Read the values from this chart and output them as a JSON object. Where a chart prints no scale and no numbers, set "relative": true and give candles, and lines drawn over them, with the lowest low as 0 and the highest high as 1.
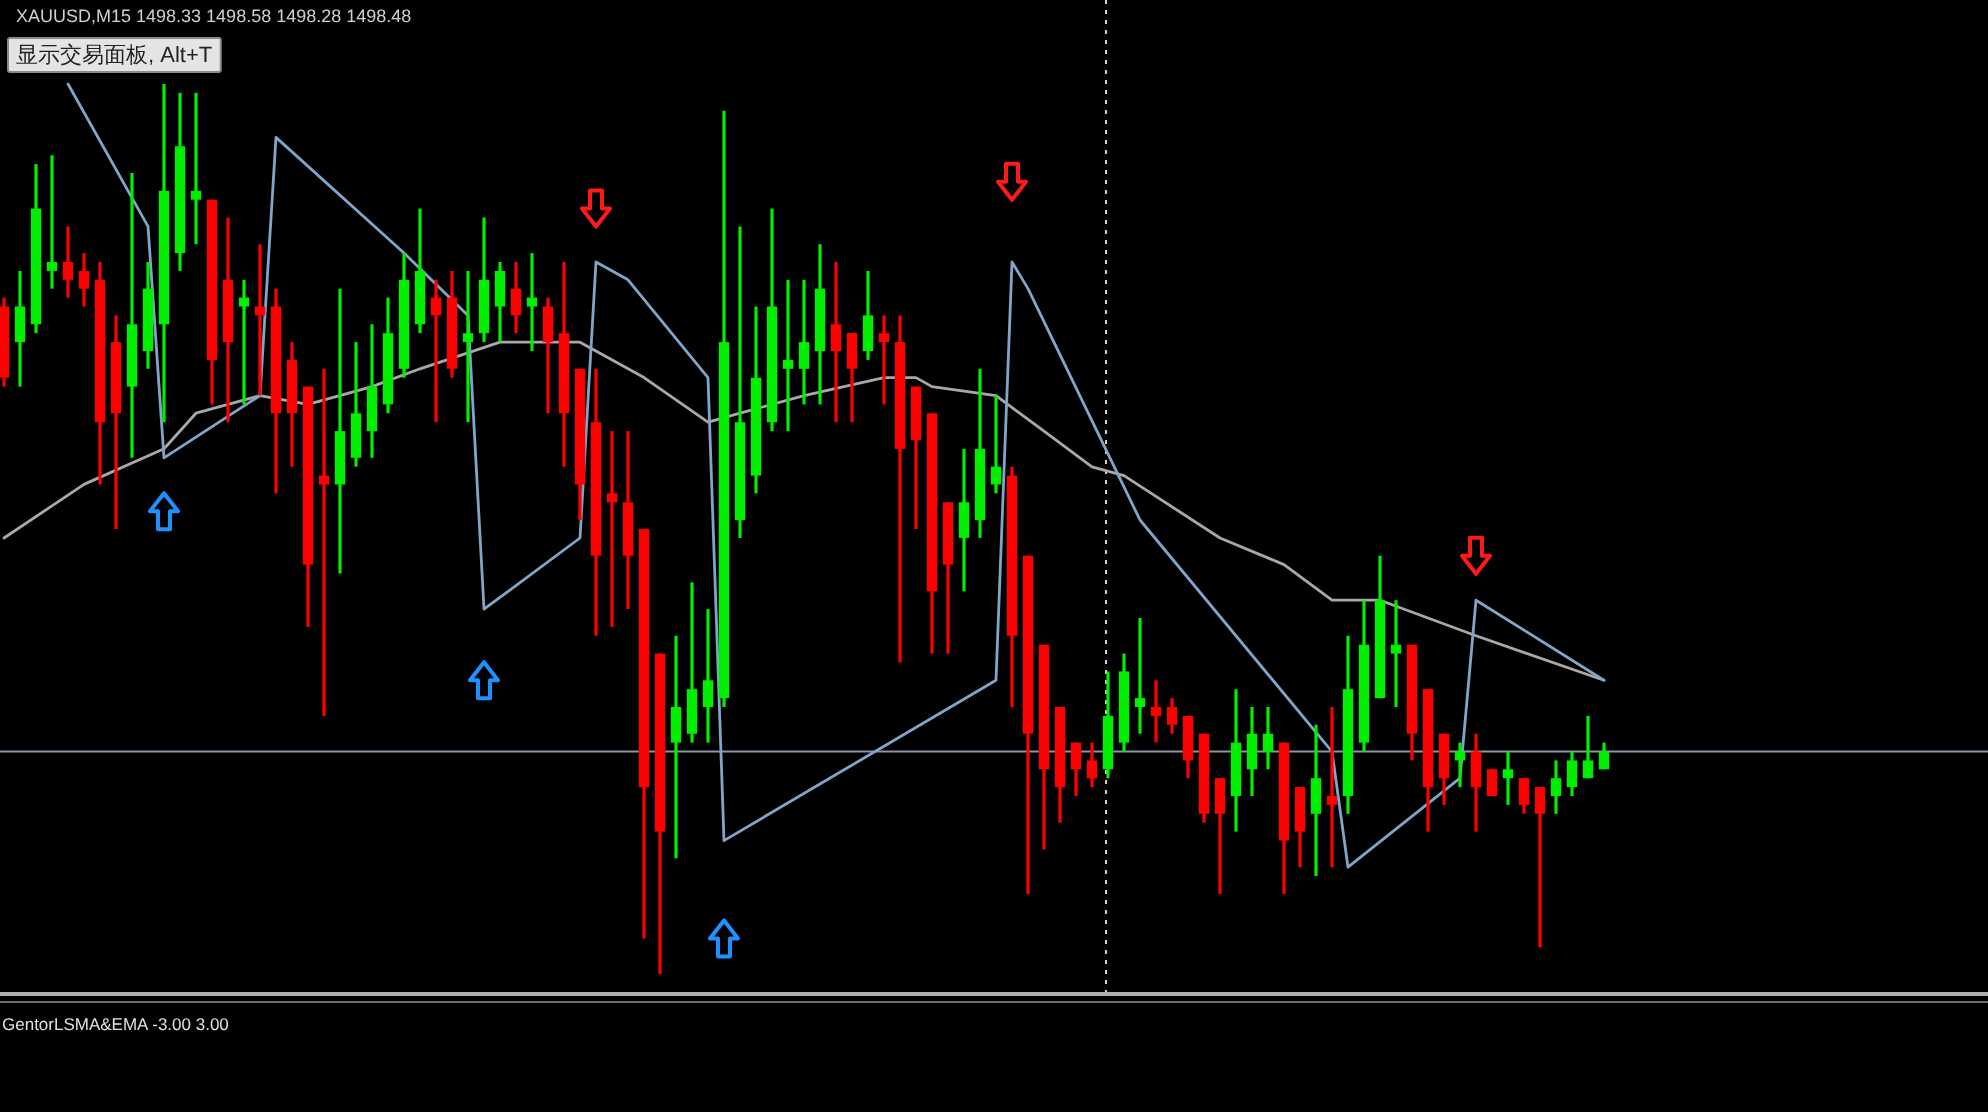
{
  "chart_data": [
    {
      "type": "candlestick",
      "title": "XAUUSD,M15  1498.33 1498.58 1498.28 1498.48",
      "annotations": [
        "显示交易面板, Alt+T"
      ],
      "relative": true,
      "categories": [
        null,
        null,
        null,
        null,
        null,
        null,
        null,
        null,
        null,
        null,
        null,
        null,
        null,
        null,
        null,
        null,
        null,
        null,
        null,
        null,
        null,
        null,
        null,
        null,
        null,
        null,
        null,
        null,
        null,
        null,
        null,
        null,
        null,
        null,
        null,
        null,
        null,
        null,
        null,
        null,
        null,
        null,
        null,
        null,
        null,
        null,
        null,
        null,
        null,
        null,
        null,
        null,
        null,
        null,
        null,
        null,
        null,
        null,
        null,
        null,
        null,
        null,
        null,
        null,
        null,
        null,
        null,
        null,
        null,
        null,
        null,
        null,
        null,
        null,
        null,
        null,
        null,
        null,
        null,
        null,
        null,
        null,
        null,
        null,
        null,
        null,
        null,
        null,
        null,
        null,
        null,
        null,
        null,
        null,
        null,
        null,
        null,
        null,
        null,
        null,
        null
      ],
      "ohlc": [
        [
          0.75,
          0.76,
          0.66,
          0.67
        ],
        [
          0.71,
          0.79,
          0.66,
          0.75
        ],
        [
          0.73,
          0.91,
          0.72,
          0.86
        ],
        [
          0.79,
          0.92,
          0.77,
          0.8
        ],
        [
          0.8,
          0.84,
          0.76,
          0.78
        ],
        [
          0.79,
          0.81,
          0.75,
          0.77
        ],
        [
          0.78,
          0.8,
          0.55,
          0.62
        ],
        [
          0.71,
          0.74,
          0.5,
          0.63
        ],
        [
          0.66,
          0.9,
          0.58,
          0.73
        ],
        [
          0.7,
          0.8,
          0.68,
          0.77
        ],
        [
          0.73,
          1.0,
          0.62,
          0.88
        ],
        [
          0.81,
          0.99,
          0.79,
          0.93
        ],
        [
          0.87,
          0.99,
          0.82,
          0.88
        ],
        [
          0.87,
          0.87,
          0.64,
          0.69
        ],
        [
          0.78,
          0.85,
          0.62,
          0.71
        ],
        [
          0.75,
          0.78,
          0.64,
          0.76
        ],
        [
          0.75,
          0.82,
          0.65,
          0.74
        ],
        [
          0.75,
          0.77,
          0.54,
          0.63
        ],
        [
          0.69,
          0.71,
          0.57,
          0.63
        ],
        [
          0.66,
          0.66,
          0.39,
          0.46
        ],
        [
          0.56,
          0.68,
          0.29,
          0.55
        ],
        [
          0.55,
          0.77,
          0.45,
          0.61
        ],
        [
          0.58,
          0.71,
          0.57,
          0.63
        ],
        [
          0.61,
          0.73,
          0.58,
          0.66
        ],
        [
          0.64,
          0.76,
          0.63,
          0.72
        ],
        [
          0.68,
          0.81,
          0.67,
          0.78
        ],
        [
          0.73,
          0.86,
          0.72,
          0.79
        ],
        [
          0.76,
          0.78,
          0.62,
          0.74
        ],
        [
          0.76,
          0.79,
          0.67,
          0.68
        ],
        [
          0.71,
          0.79,
          0.62,
          0.72
        ],
        [
          0.72,
          0.85,
          0.71,
          0.78
        ],
        [
          0.75,
          0.8,
          0.71,
          0.79
        ],
        [
          0.77,
          0.8,
          0.72,
          0.74
        ],
        [
          0.75,
          0.81,
          0.7,
          0.76
        ],
        [
          0.75,
          0.76,
          0.63,
          0.71
        ],
        [
          0.72,
          0.8,
          0.57,
          0.63
        ],
        [
          0.68,
          0.68,
          0.51,
          0.55
        ],
        [
          0.62,
          0.68,
          0.38,
          0.47
        ],
        [
          0.54,
          0.61,
          0.39,
          0.53
        ],
        [
          0.53,
          0.61,
          0.41,
          0.47
        ],
        [
          0.5,
          0.5,
          0.04,
          0.21
        ],
        [
          0.36,
          0.36,
          0,
          0.16
        ],
        [
          0.26,
          0.38,
          0.13,
          0.3
        ],
        [
          0.27,
          0.44,
          0.26,
          0.32
        ],
        [
          0.3,
          0.41,
          0.26,
          0.33
        ],
        [
          0.31,
          0.97,
          0.3,
          0.71
        ],
        [
          0.51,
          0.84,
          0.49,
          0.62
        ],
        [
          0.56,
          0.75,
          0.54,
          0.67
        ],
        [
          0.62,
          0.86,
          0.61,
          0.75
        ],
        [
          0.68,
          0.78,
          0.61,
          0.69
        ],
        [
          0.68,
          0.78,
          0.64,
          0.71
        ],
        [
          0.7,
          0.82,
          0.64,
          0.77
        ],
        [
          0.73,
          0.8,
          0.62,
          0.7
        ],
        [
          0.72,
          0.72,
          0.62,
          0.68
        ],
        [
          0.7,
          0.79,
          0.69,
          0.74
        ],
        [
          0.72,
          0.74,
          0.64,
          0.71
        ],
        [
          0.71,
          0.74,
          0.35,
          0.59
        ],
        [
          0.66,
          0.66,
          0.5,
          0.6
        ],
        [
          0.63,
          0.63,
          0.36,
          0.43
        ],
        [
          0.53,
          0.53,
          0.36,
          0.46
        ],
        [
          0.49,
          0.59,
          0.43,
          0.53
        ],
        [
          0.51,
          0.68,
          0.49,
          0.59
        ],
        [
          0.55,
          0.65,
          0.54,
          0.57
        ],
        [
          0.56,
          0.57,
          0.3,
          0.38
        ],
        [
          0.47,
          0.47,
          0.09,
          0.27
        ],
        [
          0.37,
          0.37,
          0.14,
          0.23
        ],
        [
          0.3,
          0.3,
          0.17,
          0.21
        ],
        [
          0.26,
          0.26,
          0.2,
          0.23
        ],
        [
          0.24,
          0.26,
          0.21,
          0.22
        ],
        [
          0.23,
          0.34,
          0.22,
          0.29
        ],
        [
          0.26,
          0.36,
          0.25,
          0.34
        ],
        [
          0.3,
          0.4,
          0.27,
          0.31
        ],
        [
          0.3,
          0.33,
          0.26,
          0.29
        ],
        [
          0.3,
          0.31,
          0.27,
          0.28
        ],
        [
          0.29,
          0.29,
          0.22,
          0.24
        ],
        [
          0.27,
          0.27,
          0.17,
          0.18
        ],
        [
          0.22,
          0.22,
          0.09,
          0.18
        ],
        [
          0.2,
          0.32,
          0.16,
          0.26
        ],
        [
          0.23,
          0.3,
          0.2,
          0.27
        ],
        [
          0.25,
          0.3,
          0.23,
          0.27
        ],
        [
          0.26,
          0.26,
          0.09,
          0.15
        ],
        [
          0.21,
          0.21,
          0.12,
          0.16
        ],
        [
          0.18,
          0.28,
          0.11,
          0.22
        ],
        [
          0.2,
          0.3,
          0.12,
          0.19
        ],
        [
          0.2,
          0.38,
          0.18,
          0.32
        ],
        [
          0.26,
          0.42,
          0.25,
          0.37
        ],
        [
          0.31,
          0.47,
          0.31,
          0.42
        ],
        [
          0.36,
          0.42,
          0.3,
          0.37
        ],
        [
          0.37,
          0.37,
          0.24,
          0.27
        ],
        [
          0.32,
          0.32,
          0.16,
          0.21
        ],
        [
          0.27,
          0.27,
          0.19,
          0.22
        ],
        [
          0.24,
          0.26,
          0.21,
          0.25
        ],
        [
          0.25,
          0.27,
          0.16,
          0.21
        ],
        [
          0.23,
          0.23,
          0.2,
          0.2
        ],
        [
          0.22,
          0.25,
          0.19,
          0.23
        ],
        [
          0.22,
          0.22,
          0.18,
          0.19
        ],
        [
          0.21,
          0.21,
          0.03,
          0.18
        ],
        [
          0.2,
          0.24,
          0.18,
          0.22
        ],
        [
          0.21,
          0.25,
          0.2,
          0.24
        ],
        [
          0.22,
          0.29,
          0.22,
          0.24
        ],
        [
          0.23,
          0.26,
          0.23,
          0.25
        ]
      ],
      "colors": [
        "#ff0000",
        "#00ee00",
        "#00ee00",
        "#00ee00",
        "#ff0000",
        "#ff0000",
        "#ff0000",
        "#ff0000",
        "#00ee00",
        "#00ee00",
        "#00ee00",
        "#00ee00",
        "#00ee00",
        "#ff0000",
        "#ff0000",
        "#00ee00",
        "#ff0000",
        "#ff0000",
        "#ff0000",
        "#ff0000",
        "#ff0000",
        "#00ee00",
        "#00ee00",
        "#00ee00",
        "#00ee00",
        "#00ee00",
        "#00ee00",
        "#ff0000",
        "#ff0000",
        "#00ee00",
        "#00ee00",
        "#00ee00",
        "#ff0000",
        "#00ee00",
        "#ff0000",
        "#ff0000",
        "#ff0000",
        "#ff0000",
        "#ff0000",
        "#ff0000",
        "#ff0000",
        "#ff0000",
        "#00ee00",
        "#00ee00",
        "#00ee00",
        "#00ee00",
        "#00ee00",
        "#00ee00",
        "#00ee00",
        "#00ee00",
        "#00ee00",
        "#00ee00",
        "#ff0000",
        "#ff0000",
        "#00ee00",
        "#ff0000",
        "#ff0000",
        "#ff0000",
        "#ff0000",
        "#ff0000",
        "#00ee00",
        "#00ee00",
        "#00ee00",
        "#ff0000",
        "#ff0000",
        "#ff0000",
        "#ff0000",
        "#ff0000",
        "#ff0000",
        "#00ee00",
        "#00ee00",
        "#00ee00",
        "#ff0000",
        "#ff0000",
        "#ff0000",
        "#ff0000",
        "#ff0000",
        "#00ee00",
        "#00ee00",
        "#00ee00",
        "#ff0000",
        "#ff0000",
        "#00ee00",
        "#ff0000",
        "#00ee00",
        "#00ee00",
        "#00ee00",
        "#00ee00",
        "#ff0000",
        "#ff0000",
        "#ff0000",
        "#00ee00",
        "#ff0000",
        "#ff0000",
        "#00ee00",
        "#ff0000",
        "#ff0000",
        "#00ee00",
        "#00ee00",
        "#00ee00",
        "#00ee00"
      ],
      "series": [
        {
          "type": "line",
          "color": "#a8a8a8",
          "values": [
            0.49,
            null,
            null,
            null,
            null,
            0.55,
            null,
            null,
            null,
            null,
            0.59,
            null,
            0.63,
            null,
            null,
            null,
            0.65,
            null,
            null,
            0.64,
            null,
            null,
            null,
            0.66,
            null,
            null,
            0.68,
            null,
            null,
            null,
            null,
            0.71,
            null,
            null,
            0.71,
            null,
            0.71,
            null,
            null,
            null,
            0.67,
            null,
            null,
            null,
            0.62,
            null,
            0.63,
            null,
            null,
            null,
            0.65,
            null,
            null,
            null,
            null,
            0.67,
            null,
            0.67,
            0.66,
            null,
            null,
            null,
            0.65,
            null,
            null,
            0.61,
            null,
            null,
            0.57,
            null,
            0.56,
            null,
            null,
            null,
            null,
            null,
            0.49,
            null,
            null,
            null,
            0.46,
            null,
            null,
            0.42,
            null,
            null,
            0.42,
            null,
            null,
            null,
            null,
            null,
            0.38,
            null,
            null,
            null,
            null,
            null,
            null,
            null,
            0.33
          ]
        },
        {
          "type": "line",
          "color": "#7fa6c8",
          "values": [
            null,
            null,
            null,
            null,
            1.0,
            null,
            null,
            null,
            null,
            0.84,
            0.58,
            null,
            null,
            null,
            null,
            null,
            0.65,
            0.94,
            null,
            null,
            null,
            null,
            null,
            null,
            null,
            0.81,
            null,
            null,
            null,
            0.74,
            0.41,
            null,
            null,
            null,
            null,
            null,
            0.49,
            0.8,
            null,
            0.78,
            null,
            null,
            null,
            null,
            0.67,
            0.15,
            null,
            null,
            null,
            null,
            null,
            null,
            null,
            null,
            null,
            null,
            null,
            null,
            null,
            null,
            null,
            null,
            0.33,
            0.8,
            0.77,
            null,
            null,
            null,
            null,
            null,
            null,
            0.51,
            null,
            null,
            null,
            null,
            null,
            null,
            null,
            null,
            null,
            null,
            null,
            0.25,
            0.12,
            null,
            null,
            null,
            null,
            null,
            null,
            0.22,
            0.42,
            null,
            null,
            null,
            null,
            null,
            null,
            null,
            0.33
          ]
        },
        {
          "type": "scatter",
          "marker": "triangle",
          "color": "#1e90ff",
          "values": [
            null,
            null,
            null,
            null,
            null,
            null,
            null,
            null,
            null,
            null,
            0.52,
            null,
            null,
            null,
            null,
            null,
            null,
            null,
            null,
            null,
            null,
            null,
            null,
            null,
            null,
            null,
            null,
            null,
            null,
            null,
            0.33,
            null,
            null,
            null,
            null,
            null,
            null,
            null,
            null,
            null,
            null,
            null,
            null,
            null,
            null,
            0.04,
            null,
            null,
            null,
            null,
            null,
            null,
            null,
            null,
            null,
            null,
            null,
            null,
            null,
            null,
            null,
            null,
            null,
            null,
            null,
            null,
            null,
            null,
            null,
            null,
            null,
            null,
            null,
            null,
            null,
            null,
            null,
            null,
            null,
            null,
            null,
            null,
            null,
            null,
            null,
            null,
            null,
            null,
            null,
            null,
            null,
            null,
            null,
            null,
            null,
            null,
            null,
            null,
            null,
            null,
            null
          ]
        },
        {
          "type": "scatter",
          "marker": "triangle-down",
          "color": "#ff1a1a",
          "values": [
            null,
            null,
            null,
            null,
            null,
            null,
            null,
            null,
            null,
            null,
            null,
            null,
            null,
            null,
            null,
            null,
            null,
            null,
            null,
            null,
            null,
            null,
            null,
            null,
            null,
            null,
            null,
            null,
            null,
            null,
            null,
            null,
            null,
            null,
            null,
            null,
            null,
            0.86,
            null,
            null,
            null,
            null,
            null,
            null,
            null,
            null,
            null,
            null,
            null,
            null,
            null,
            null,
            null,
            null,
            null,
            null,
            null,
            null,
            null,
            null,
            null,
            null,
            null,
            0.89,
            null,
            null,
            null,
            null,
            null,
            null,
            null,
            null,
            null,
            null,
            null,
            null,
            null,
            null,
            null,
            null,
            null,
            null,
            null,
            null,
            null,
            null,
            null,
            null,
            null,
            null,
            null,
            null,
            0.47,
            null,
            null,
            null,
            null,
            null,
            null,
            null,
            null
          ]
        }
      ],
      "ref_lines": [
        {
          "axis": "y",
          "value": 0.25,
          "color": "#8c94a8",
          "line_style": "solid"
        }
      ]
    },
    {
      "type": "other",
      "title": "GentorLSMA&EMA -3.00 3.00"
    }
  ]
}
